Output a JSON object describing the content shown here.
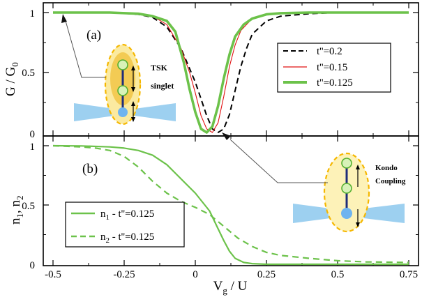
{
  "chart_data": [
    {
      "panel_label": "(a)",
      "type": "line",
      "ylabel": "G / G",
      "ylabel_sub": "0",
      "xlim": [
        -0.5,
        0.76
      ],
      "ylim": [
        0,
        1.0
      ],
      "yticks": [
        "0",
        "0.5",
        "1"
      ],
      "series": [
        {
          "name": "t''=0.2",
          "style": "dashed",
          "color": "#000000",
          "x": [
            -0.5,
            -0.3,
            -0.2,
            -0.15,
            -0.1,
            -0.05,
            0.0,
            0.02,
            0.04,
            0.06,
            0.08,
            0.1,
            0.12,
            0.14,
            0.16,
            0.18,
            0.2,
            0.25,
            0.3,
            0.4,
            0.5,
            0.6,
            0.75
          ],
          "y": [
            1.0,
            1.0,
            0.985,
            0.96,
            0.88,
            0.7,
            0.42,
            0.28,
            0.14,
            0.03,
            0.0,
            0.03,
            0.15,
            0.35,
            0.55,
            0.7,
            0.82,
            0.93,
            0.97,
            0.99,
            1.0,
            1.0,
            1.0
          ]
        },
        {
          "name": "t''=0.15",
          "style": "solid",
          "color": "#e01010",
          "x": [
            -0.5,
            -0.3,
            -0.2,
            -0.15,
            -0.1,
            -0.05,
            -0.02,
            0.0,
            0.02,
            0.04,
            0.06,
            0.08,
            0.1,
            0.12,
            0.14,
            0.16,
            0.2,
            0.25,
            0.3,
            0.4,
            0.5,
            0.75
          ],
          "y": [
            1.0,
            1.0,
            0.99,
            0.97,
            0.9,
            0.7,
            0.5,
            0.33,
            0.14,
            0.03,
            0.0,
            0.08,
            0.3,
            0.55,
            0.73,
            0.85,
            0.95,
            0.985,
            0.995,
            1.0,
            1.0,
            1.0
          ]
        },
        {
          "name": "t''=0.125",
          "style": "solid",
          "color": "#6cc24a",
          "x": [
            -0.5,
            -0.3,
            -0.2,
            -0.15,
            -0.1,
            -0.07,
            -0.04,
            -0.02,
            0.0,
            0.02,
            0.04,
            0.06,
            0.08,
            0.1,
            0.12,
            0.14,
            0.17,
            0.2,
            0.25,
            0.3,
            0.4,
            0.5,
            0.75
          ],
          "y": [
            1.0,
            1.0,
            0.99,
            0.97,
            0.93,
            0.84,
            0.58,
            0.36,
            0.17,
            0.03,
            0.0,
            0.05,
            0.22,
            0.45,
            0.65,
            0.8,
            0.9,
            0.95,
            0.985,
            0.995,
            1.0,
            1.0,
            1.0
          ]
        }
      ],
      "legend_position": "right",
      "annotation": [
        "TSK",
        "singlet"
      ]
    },
    {
      "panel_label": "(b)",
      "type": "line",
      "ylabel": "n",
      "ylabel_sub1": "1",
      "ylabel_mid": ", n",
      "ylabel_sub2": "2",
      "xlabel": "V",
      "xlabel_sub": "g",
      "xlabel_tail": " / U",
      "xlim": [
        -0.5,
        0.76
      ],
      "ylim": [
        0,
        1.0
      ],
      "xticks": [
        "-0.5",
        "-0.25",
        "0",
        "0.25",
        "0.5",
        "0.75"
      ],
      "xtick_values": [
        -0.5,
        -0.25,
        0,
        0.25,
        0.5,
        0.75
      ],
      "yticks": [
        "0",
        "0.5",
        "1"
      ],
      "series": [
        {
          "name_pre": "n",
          "name_sub": "1",
          "name_post": " - t''=0.125",
          "style": "solid",
          "color": "#6cc24a",
          "x": [
            -0.5,
            -0.4,
            -0.3,
            -0.25,
            -0.2,
            -0.15,
            -0.1,
            -0.05,
            0.0,
            0.05,
            0.08,
            0.1,
            0.12,
            0.14,
            0.17,
            0.2,
            0.25,
            0.3,
            0.5,
            0.75
          ],
          "y": [
            1.0,
            0.998,
            0.99,
            0.98,
            0.96,
            0.92,
            0.84,
            0.72,
            0.6,
            0.45,
            0.3,
            0.2,
            0.11,
            0.05,
            0.015,
            0.005,
            0.0,
            0.0,
            0.0,
            0.0
          ]
        },
        {
          "name_pre": "n",
          "name_sub": "2",
          "name_post": " - t''=0.125",
          "style": "dashed",
          "color": "#6cc24a",
          "x": [
            -0.5,
            -0.4,
            -0.35,
            -0.3,
            -0.25,
            -0.2,
            -0.15,
            -0.1,
            -0.05,
            0.0,
            0.05,
            0.1,
            0.15,
            0.2,
            0.25,
            0.3,
            0.4,
            0.5,
            0.6,
            0.75
          ],
          "y": [
            1.0,
            0.99,
            0.98,
            0.96,
            0.91,
            0.82,
            0.7,
            0.6,
            0.53,
            0.48,
            0.42,
            0.32,
            0.22,
            0.15,
            0.1,
            0.075,
            0.05,
            0.03,
            0.02,
            0.015
          ]
        }
      ],
      "legend_position": "bottom-left",
      "annotation": [
        "Kondo",
        "Coupling"
      ]
    }
  ]
}
